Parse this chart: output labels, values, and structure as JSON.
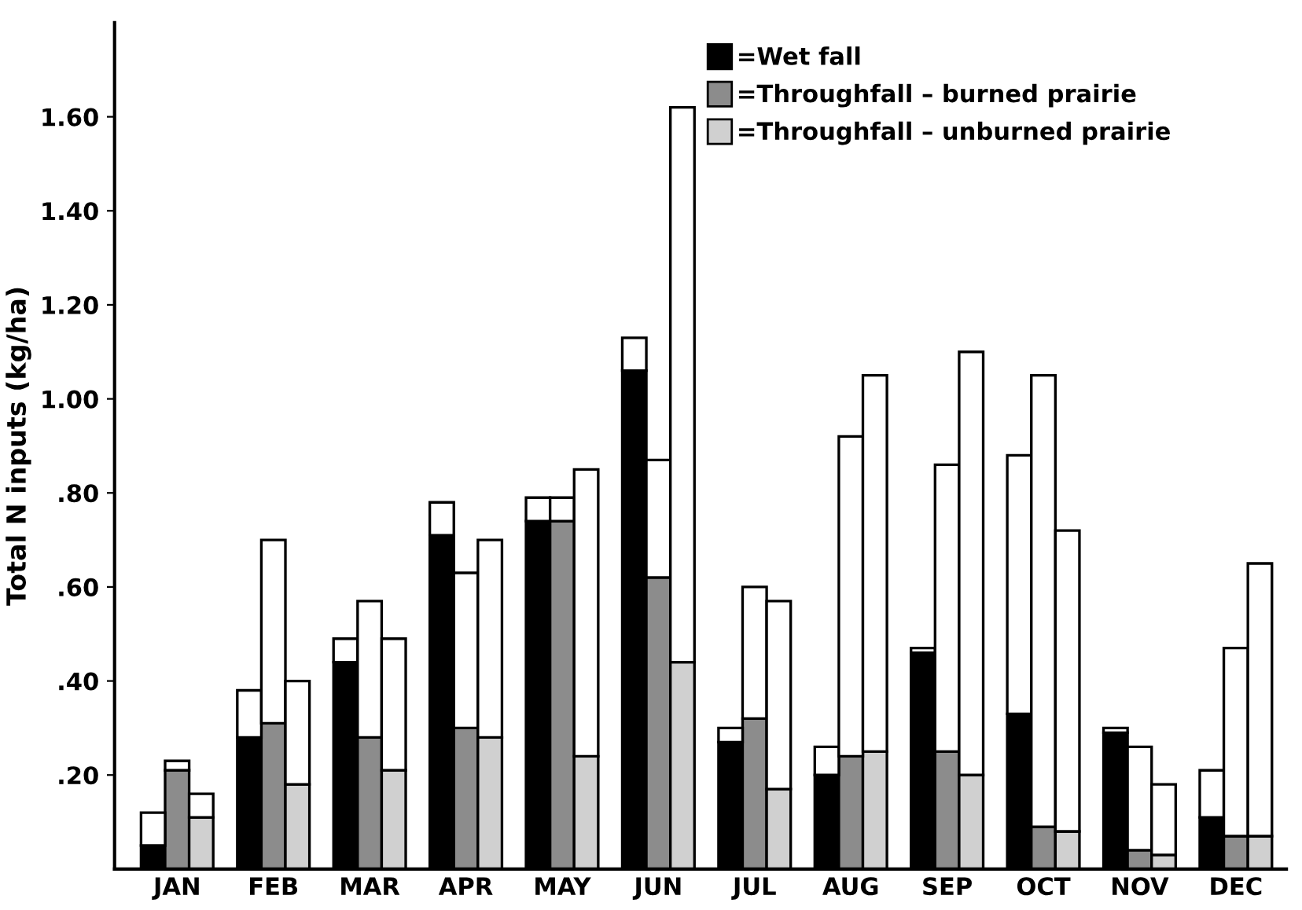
{
  "chart_data": {
    "type": "bar",
    "stacked": true,
    "ylabel": "Total N inputs (kg/ha)",
    "categories": [
      null,
      "JAN",
      null,
      null,
      null,
      "FEB",
      null,
      null,
      null,
      "MAR",
      null,
      null,
      null,
      "APR",
      null,
      null,
      null,
      "MAY",
      null,
      null,
      null,
      "JUN",
      null,
      null,
      null,
      "JUL",
      null,
      null,
      null,
      "AUG",
      null,
      null,
      null,
      "SEP",
      null,
      null,
      null,
      "OCT",
      null,
      null,
      null,
      "NOV",
      null,
      null,
      null,
      "DEC",
      null,
      null
    ],
    "series": [
      {
        "name": "=Wet fall",
        "color": "#000000",
        "values": [
          0.05,
          null,
          null,
          null,
          0.28,
          null,
          null,
          null,
          0.44,
          null,
          null,
          null,
          0.71,
          null,
          null,
          null,
          0.74,
          null,
          null,
          null,
          1.06,
          null,
          null,
          null,
          0.27,
          null,
          null,
          null,
          0.2,
          null,
          null,
          null,
          0.46,
          null,
          null,
          null,
          0.33,
          null,
          null,
          null,
          0.29,
          null,
          null,
          null,
          0.11,
          null,
          null,
          null
        ]
      },
      {
        "name": "=Throughfall – burned prairie",
        "color": "#8c8c8c",
        "values": [
          null,
          0.21,
          null,
          null,
          null,
          0.31,
          null,
          null,
          null,
          0.28,
          null,
          null,
          null,
          0.3,
          null,
          null,
          null,
          0.74,
          null,
          null,
          null,
          0.62,
          null,
          null,
          null,
          0.32,
          null,
          null,
          null,
          0.24,
          null,
          null,
          null,
          0.25,
          null,
          null,
          null,
          0.09,
          null,
          null,
          null,
          0.04,
          null,
          null,
          null,
          0.07,
          null,
          null
        ]
      },
      {
        "name": "=Throughfall – unburned prairie",
        "color": "#d0d0d0",
        "values": [
          null,
          null,
          0.11,
          null,
          null,
          null,
          0.18,
          null,
          null,
          null,
          0.21,
          null,
          null,
          null,
          0.28,
          null,
          null,
          null,
          0.24,
          null,
          null,
          null,
          0.44,
          null,
          null,
          null,
          0.17,
          null,
          null,
          null,
          0.25,
          null,
          null,
          null,
          0.2,
          null,
          null,
          null,
          0.08,
          null,
          null,
          null,
          0.03,
          null,
          null,
          null,
          0.07,
          null
        ]
      },
      {
        "color": "#ffffff",
        "values": [
          0.07,
          0.02,
          0.05,
          null,
          0.1,
          0.39,
          0.22,
          null,
          0.05,
          0.29,
          0.28,
          null,
          0.07,
          0.33,
          0.42,
          null,
          0.05,
          0.05,
          0.61,
          null,
          0.07,
          0.25,
          1.18,
          null,
          0.03,
          0.28,
          0.4,
          null,
          0.06,
          0.68,
          0.8,
          null,
          0.01,
          0.61,
          0.9,
          null,
          0.55,
          0.96,
          0.64,
          null,
          0.01,
          0.22,
          0.15,
          null,
          0.1,
          0.4,
          0.58,
          null
        ]
      }
    ],
    "ylim": [
      0,
      1.8
    ],
    "yticks": [
      {
        "value": 0.2,
        "label": ".20"
      },
      {
        "value": 0.4,
        "label": ".40"
      },
      {
        "value": 0.6,
        "label": ".60"
      },
      {
        "value": 0.8,
        "label": ".80"
      },
      {
        "value": 1.0,
        "label": "1.00"
      },
      {
        "value": 1.2,
        "label": "1.20"
      },
      {
        "value": 1.4,
        "label": "1.40"
      },
      {
        "value": 1.6,
        "label": "1.60"
      }
    ],
    "legend": "top right"
  }
}
